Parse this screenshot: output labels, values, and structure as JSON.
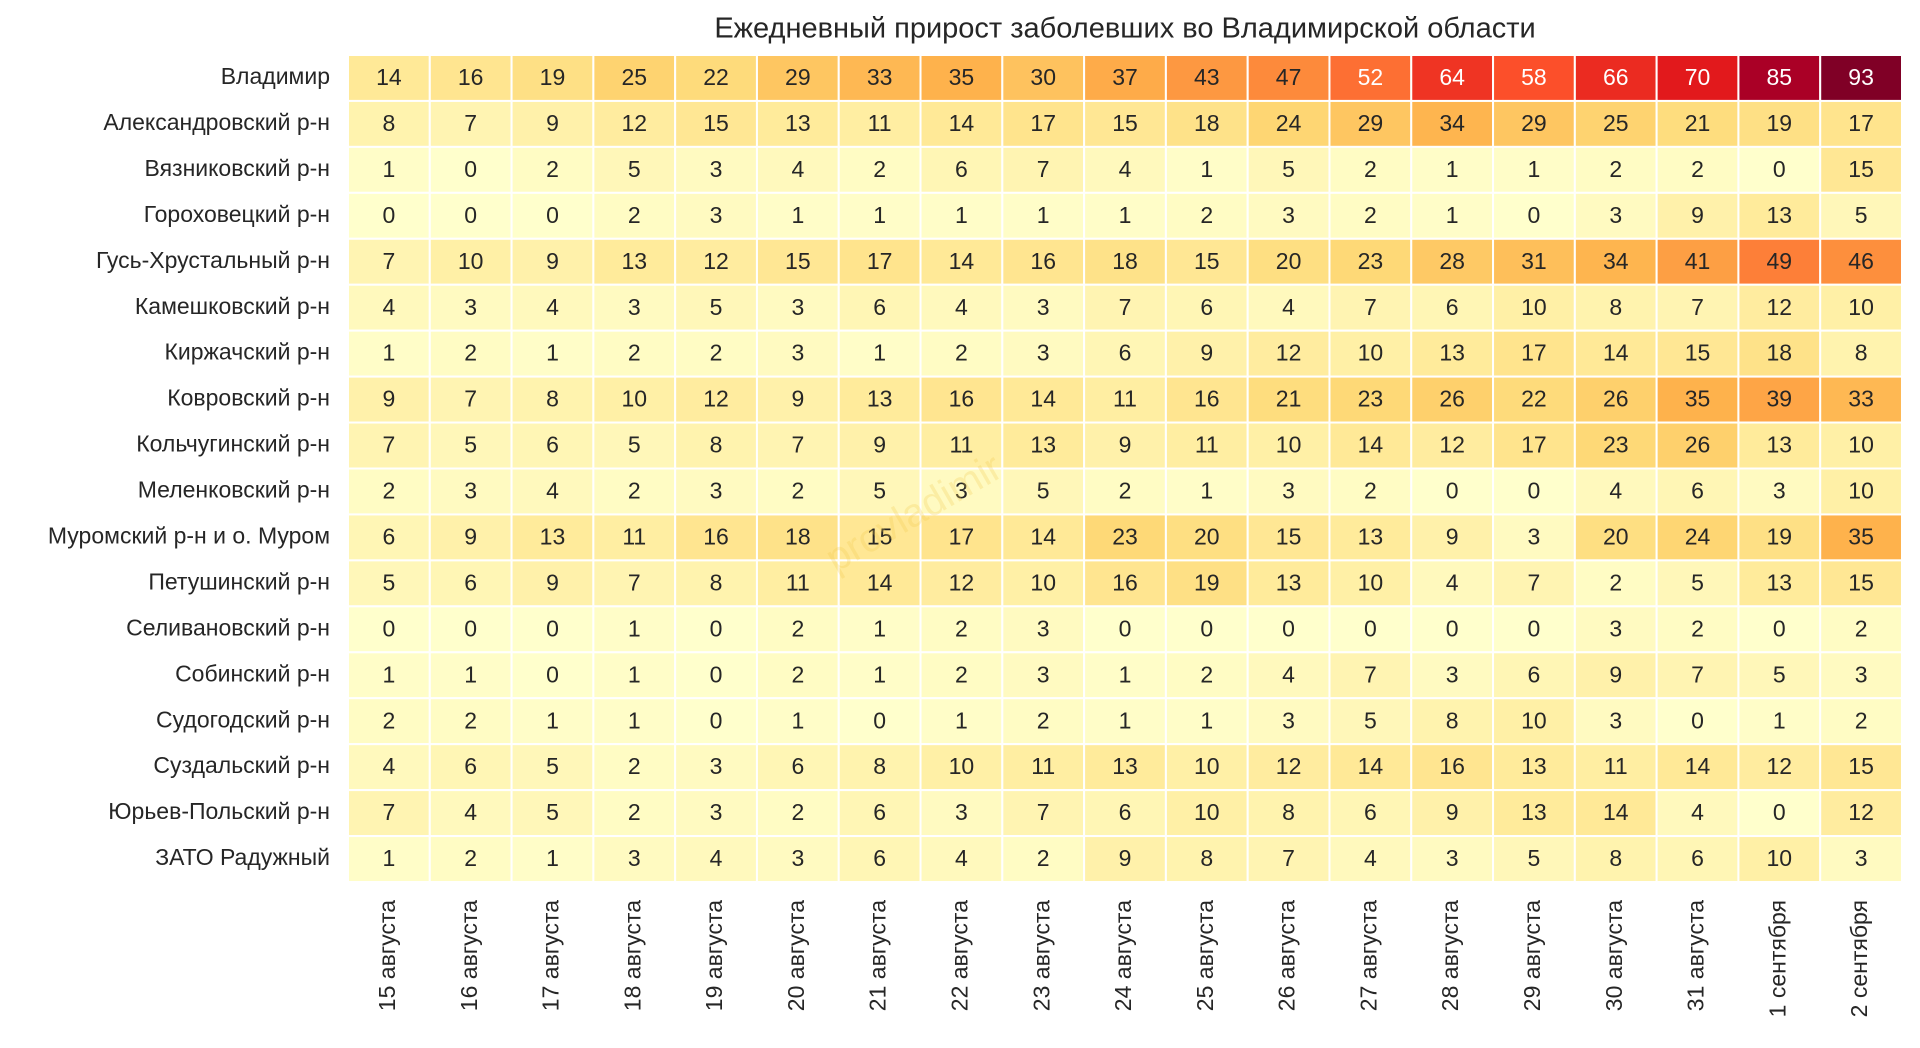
{
  "chart_data": {
    "type": "heatmap",
    "title": "Ежедневный прирост заболевших во Владимирской области",
    "watermark": "provladimir",
    "x": [
      "15 августа",
      "16 августа",
      "17 августа",
      "18 августа",
      "19 августа",
      "20 августа",
      "21 августа",
      "22 августа",
      "23 августа",
      "24 августа",
      "25 августа",
      "26 августа",
      "27 августа",
      "28 августа",
      "29 августа",
      "30 августа",
      "31 августа",
      "1 сентября",
      "2 сентября"
    ],
    "y": [
      "Владимир",
      "Александровский р-н",
      "Вязниковский р-н",
      "Гороховецкий р-н",
      "Гусь-Хрустальный р-н",
      "Камешковский р-н",
      "Киржачский р-н",
      "Ковровский р-н",
      "Кольчугинский р-н",
      "Меленковский р-н",
      "Муромский р-н и о. Муром",
      "Петушинский р-н",
      "Селивановский р-н",
      "Собинский р-н",
      "Судогодский р-н",
      "Суздальский р-н",
      "Юрьев-Польский р-н",
      "ЗАТО Радужный"
    ],
    "values": [
      [
        14,
        16,
        19,
        25,
        22,
        29,
        33,
        35,
        30,
        37,
        43,
        47,
        52,
        64,
        58,
        66,
        70,
        85,
        93
      ],
      [
        8,
        7,
        9,
        12,
        15,
        13,
        11,
        14,
        17,
        15,
        18,
        24,
        29,
        34,
        29,
        25,
        21,
        19,
        17
      ],
      [
        1,
        0,
        2,
        5,
        3,
        4,
        2,
        6,
        7,
        4,
        1,
        5,
        2,
        1,
        1,
        2,
        2,
        0,
        15
      ],
      [
        0,
        0,
        0,
        2,
        3,
        1,
        1,
        1,
        1,
        1,
        2,
        3,
        2,
        1,
        0,
        3,
        9,
        13,
        5
      ],
      [
        7,
        10,
        9,
        13,
        12,
        15,
        17,
        14,
        16,
        18,
        15,
        20,
        23,
        28,
        31,
        34,
        41,
        49,
        46
      ],
      [
        4,
        3,
        4,
        3,
        5,
        3,
        6,
        4,
        3,
        7,
        6,
        4,
        7,
        6,
        10,
        8,
        7,
        12,
        10
      ],
      [
        1,
        2,
        1,
        2,
        2,
        3,
        1,
        2,
        3,
        6,
        9,
        12,
        10,
        13,
        17,
        14,
        15,
        18,
        8
      ],
      [
        9,
        7,
        8,
        10,
        12,
        9,
        13,
        16,
        14,
        11,
        16,
        21,
        23,
        26,
        22,
        26,
        35,
        39,
        33
      ],
      [
        7,
        5,
        6,
        5,
        8,
        7,
        9,
        11,
        13,
        9,
        11,
        10,
        14,
        12,
        17,
        23,
        26,
        13,
        10
      ],
      [
        2,
        3,
        4,
        2,
        3,
        2,
        5,
        3,
        5,
        2,
        1,
        3,
        2,
        0,
        0,
        4,
        6,
        3,
        10
      ],
      [
        6,
        9,
        13,
        11,
        16,
        18,
        15,
        17,
        14,
        23,
        20,
        15,
        13,
        9,
        3,
        20,
        24,
        19,
        35
      ],
      [
        5,
        6,
        9,
        7,
        8,
        11,
        14,
        12,
        10,
        16,
        19,
        13,
        10,
        4,
        7,
        2,
        5,
        13,
        15
      ],
      [
        0,
        0,
        0,
        1,
        0,
        2,
        1,
        2,
        3,
        0,
        0,
        0,
        0,
        0,
        0,
        3,
        2,
        0,
        2
      ],
      [
        1,
        1,
        0,
        1,
        0,
        2,
        1,
        2,
        3,
        1,
        2,
        4,
        7,
        3,
        6,
        9,
        7,
        5,
        3
      ],
      [
        2,
        2,
        1,
        1,
        0,
        1,
        0,
        1,
        2,
        1,
        1,
        3,
        5,
        8,
        10,
        3,
        0,
        1,
        2
      ],
      [
        4,
        6,
        5,
        2,
        3,
        6,
        8,
        10,
        11,
        13,
        10,
        12,
        14,
        16,
        13,
        11,
        14,
        12,
        15
      ],
      [
        7,
        4,
        5,
        2,
        3,
        2,
        6,
        3,
        7,
        6,
        10,
        8,
        6,
        9,
        13,
        14,
        4,
        0,
        12
      ],
      [
        1,
        2,
        1,
        3,
        4,
        3,
        6,
        4,
        2,
        9,
        8,
        7,
        4,
        3,
        5,
        8,
        6,
        10,
        3
      ]
    ],
    "colormap": [
      "#ffffcc",
      "#ffeda0",
      "#fed976",
      "#feb24c",
      "#fd8d3c",
      "#fc4e2a",
      "#e31a1c",
      "#bd0026",
      "#800026"
    ]
  }
}
